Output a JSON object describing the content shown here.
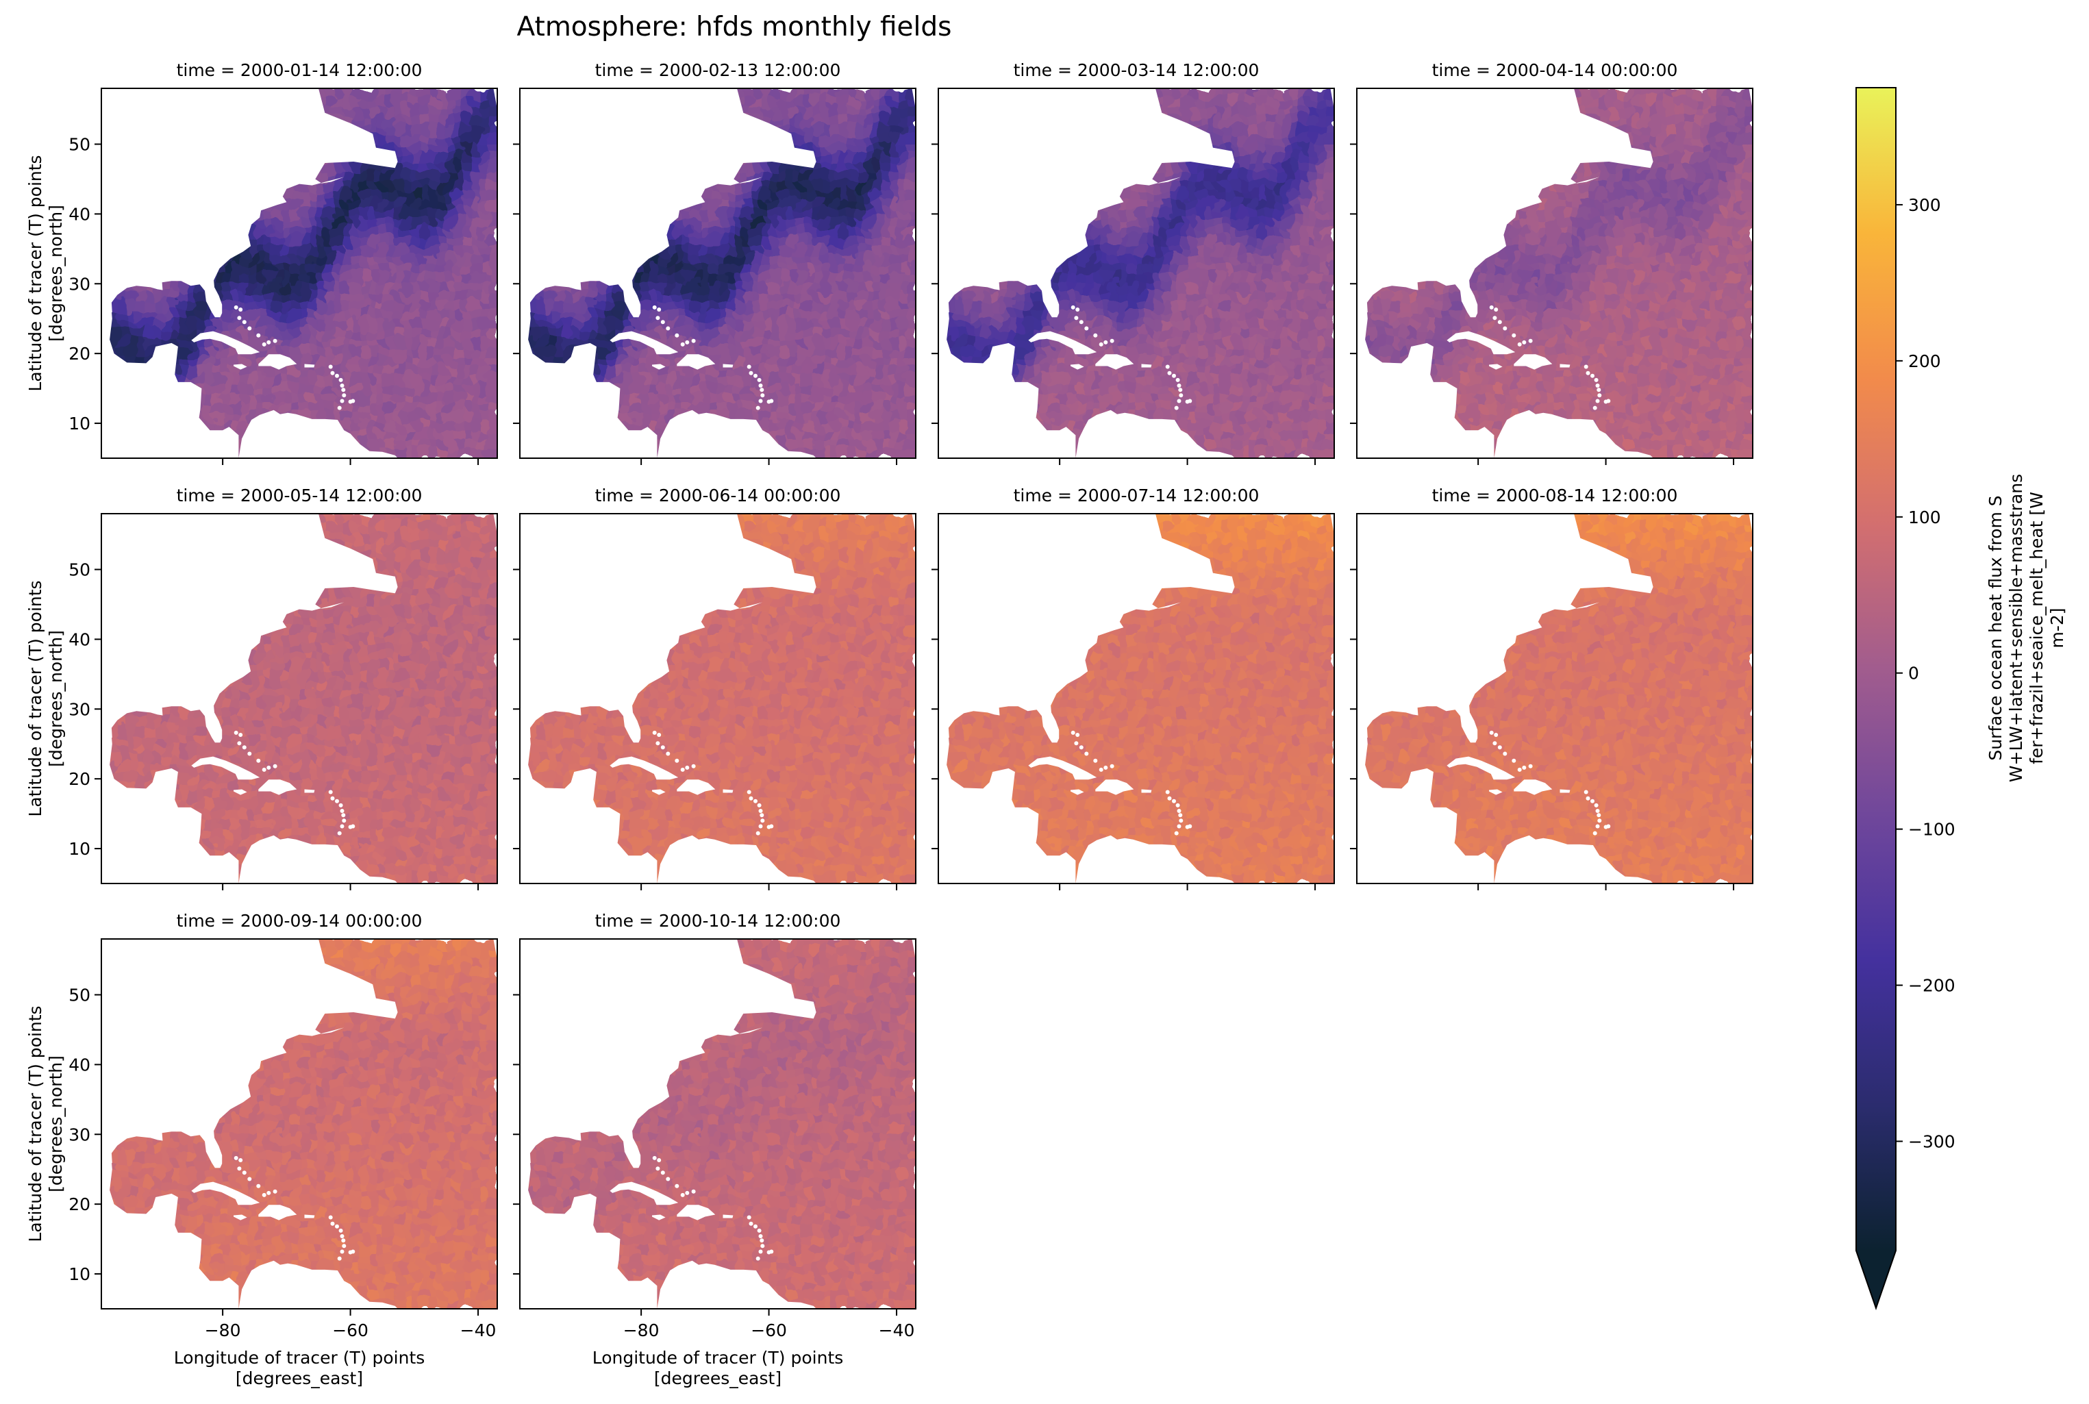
{
  "chart_data": {
    "type": "heatmap",
    "title": "Atmosphere: hfds monthly fields",
    "xlabel": [
      "Longitude of tracer (T) points",
      "[degrees_east]"
    ],
    "ylabel": [
      "Latitude of tracer (T) points",
      "[degrees_north]"
    ],
    "xlim": [
      -99,
      -37
    ],
    "ylim": [
      5,
      58
    ],
    "xticks": [
      -80,
      -60,
      -40
    ],
    "xtick_labels": [
      "−80",
      "−60",
      "−40"
    ],
    "yticks": [
      10,
      20,
      30,
      40,
      50
    ],
    "ytick_labels": [
      "10",
      "20",
      "30",
      "40",
      "50"
    ],
    "panels": [
      {
        "title": "time = 2000-01-14 12:00:00",
        "month": 1
      },
      {
        "title": "time = 2000-02-13 12:00:00",
        "month": 2
      },
      {
        "title": "time = 2000-03-14 12:00:00",
        "month": 3
      },
      {
        "title": "time = 2000-04-14 00:00:00",
        "month": 4
      },
      {
        "title": "time = 2000-05-14 12:00:00",
        "month": 5
      },
      {
        "title": "time = 2000-06-14 00:00:00",
        "month": 6
      },
      {
        "title": "time = 2000-07-14 12:00:00",
        "month": 7
      },
      {
        "title": "time = 2000-08-14 12:00:00",
        "month": 8
      },
      {
        "title": "time = 2000-09-14 00:00:00",
        "month": 9
      },
      {
        "title": "time = 2000-10-14 12:00:00",
        "month": 10
      }
    ],
    "colorbar": {
      "label": [
        "Surface ocean heat flux from S",
        "W+LW+latent+sensible+masstrans",
        "fer+frazil+seaice_melt_heat [W",
        "m-2]"
      ],
      "vmin": -370,
      "vmax": 375,
      "extend": "min",
      "ticks": [
        -300,
        -200,
        -100,
        0,
        100,
        200,
        300
      ],
      "tick_labels": [
        "−300",
        "−200",
        "−100",
        "0",
        "100",
        "200",
        "300"
      ],
      "colormap": [
        "#0c2230",
        "#2b2c6e",
        "#44319e",
        "#70479b",
        "#a15c8e",
        "#d36f6f",
        "#f28b4b",
        "#f9b53a",
        "#e9f25a"
      ]
    }
  }
}
